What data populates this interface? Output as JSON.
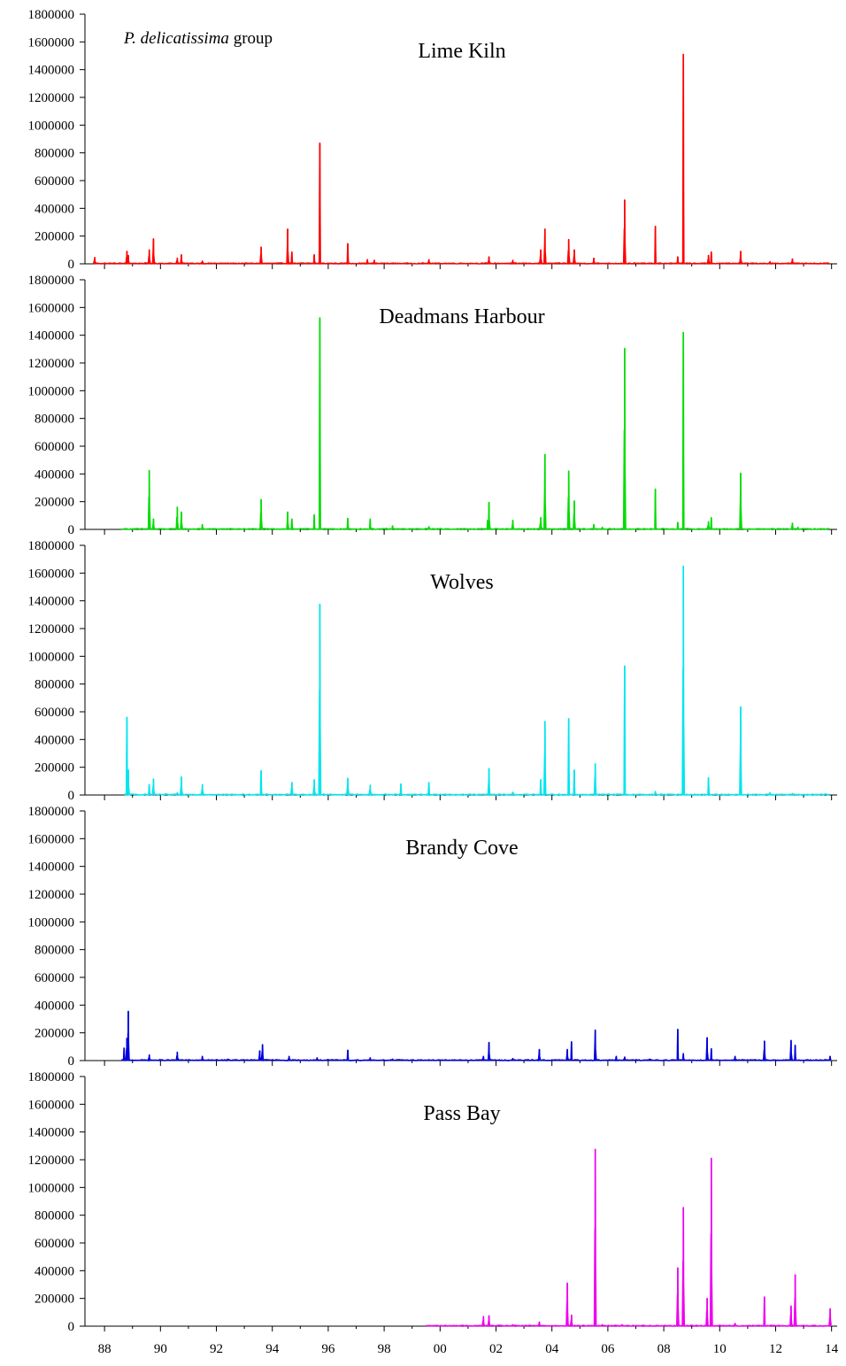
{
  "figure": {
    "group_label_species": "P. delicatissima",
    "group_label_suffix": " group"
  },
  "chart_data": {
    "type": "line",
    "xlabel": "",
    "ylabel": "",
    "ylim": [
      0,
      1800000
    ],
    "y_ticks": [
      0,
      200000,
      400000,
      600000,
      800000,
      1000000,
      1200000,
      1400000,
      1600000,
      1800000
    ],
    "y_tick_labels": [
      "0",
      "200000",
      "400000",
      "600000",
      "800000",
      "1000000",
      "1200000",
      "1400000",
      "1600000",
      "1800000"
    ],
    "xlim": [
      1987.3,
      2014.2
    ],
    "x_ticks": [
      1988,
      1990,
      1992,
      1994,
      1996,
      1998,
      2000,
      2002,
      2004,
      2006,
      2008,
      2010,
      2012,
      2014
    ],
    "x_tick_labels": [
      "88",
      "90",
      "92",
      "94",
      "96",
      "98",
      "00",
      "02",
      "04",
      "06",
      "08",
      "10",
      "12",
      "14"
    ],
    "grid": false,
    "panels": [
      {
        "title": "Lime Kiln",
        "color": "#ff0000",
        "start": 1987.6,
        "peaks": [
          [
            1987.65,
            45000
          ],
          [
            1988.8,
            90000
          ],
          [
            1988.85,
            60000
          ],
          [
            1989.6,
            100000
          ],
          [
            1989.75,
            180000
          ],
          [
            1990.6,
            40000
          ],
          [
            1990.75,
            65000
          ],
          [
            1991.5,
            20000
          ],
          [
            1993.6,
            120000
          ],
          [
            1994.55,
            250000
          ],
          [
            1994.7,
            85000
          ],
          [
            1995.5,
            65000
          ],
          [
            1995.7,
            870000
          ],
          [
            1996.7,
            145000
          ],
          [
            1997.4,
            30000
          ],
          [
            1997.65,
            25000
          ],
          [
            1999.6,
            30000
          ],
          [
            2001.75,
            50000
          ],
          [
            2002.6,
            25000
          ],
          [
            2003.6,
            100000
          ],
          [
            2003.75,
            250000
          ],
          [
            2004.6,
            175000
          ],
          [
            2004.8,
            100000
          ],
          [
            2005.5,
            40000
          ],
          [
            2006.6,
            460000
          ],
          [
            2007.7,
            270000
          ],
          [
            2008.5,
            50000
          ],
          [
            2008.7,
            1510000
          ],
          [
            2009.6,
            60000
          ],
          [
            2009.7,
            85000
          ],
          [
            2010.75,
            90000
          ],
          [
            2011.8,
            15000
          ],
          [
            2012.6,
            35000
          ]
        ]
      },
      {
        "title": "Deadmans Harbour",
        "color": "#00dd00",
        "start": 1988.6,
        "peaks": [
          [
            1989.6,
            425000
          ],
          [
            1989.75,
            75000
          ],
          [
            1990.6,
            160000
          ],
          [
            1990.75,
            125000
          ],
          [
            1991.5,
            35000
          ],
          [
            1993.6,
            215000
          ],
          [
            1994.55,
            125000
          ],
          [
            1994.7,
            75000
          ],
          [
            1995.5,
            105000
          ],
          [
            1995.7,
            1525000
          ],
          [
            1996.7,
            80000
          ],
          [
            1997.5,
            75000
          ],
          [
            1998.3,
            25000
          ],
          [
            1999.6,
            20000
          ],
          [
            2001.7,
            65000
          ],
          [
            2001.75,
            195000
          ],
          [
            2002.6,
            65000
          ],
          [
            2003.6,
            85000
          ],
          [
            2003.75,
            540000
          ],
          [
            2004.6,
            420000
          ],
          [
            2004.8,
            205000
          ],
          [
            2005.5,
            35000
          ],
          [
            2005.8,
            15000
          ],
          [
            2006.6,
            1305000
          ],
          [
            2007.7,
            290000
          ],
          [
            2008.5,
            50000
          ],
          [
            2008.7,
            1420000
          ],
          [
            2009.6,
            55000
          ],
          [
            2009.7,
            85000
          ],
          [
            2010.75,
            405000
          ],
          [
            2012.6,
            45000
          ],
          [
            2012.8,
            15000
          ]
        ]
      },
      {
        "title": "Wolves",
        "color": "#00e5ee",
        "start": 1988.7,
        "peaks": [
          [
            1988.8,
            560000
          ],
          [
            1988.85,
            180000
          ],
          [
            1989.6,
            75000
          ],
          [
            1989.75,
            115000
          ],
          [
            1990.6,
            15000
          ],
          [
            1990.75,
            130000
          ],
          [
            1991.5,
            75000
          ],
          [
            1993.6,
            175000
          ],
          [
            1994.7,
            90000
          ],
          [
            1995.5,
            110000
          ],
          [
            1995.7,
            1375000
          ],
          [
            1996.7,
            120000
          ],
          [
            1997.5,
            70000
          ],
          [
            1998.6,
            80000
          ],
          [
            1999.6,
            90000
          ],
          [
            2001.75,
            190000
          ],
          [
            2002.6,
            20000
          ],
          [
            2003.6,
            110000
          ],
          [
            2003.75,
            530000
          ],
          [
            2004.6,
            550000
          ],
          [
            2004.8,
            180000
          ],
          [
            2005.55,
            225000
          ],
          [
            2006.6,
            930000
          ],
          [
            2007.7,
            25000
          ],
          [
            2008.7,
            1650000
          ],
          [
            2009.6,
            125000
          ],
          [
            2010.75,
            635000
          ],
          [
            2011.8,
            15000
          ],
          [
            2012.6,
            10000
          ]
        ]
      },
      {
        "title": "Brandy Cove",
        "color": "#0000dd",
        "start": 1988.6,
        "peaks": [
          [
            1988.7,
            90000
          ],
          [
            1988.8,
            160000
          ],
          [
            1988.85,
            355000
          ],
          [
            1989.6,
            40000
          ],
          [
            1990.6,
            60000
          ],
          [
            1991.5,
            30000
          ],
          [
            1992.4,
            10000
          ],
          [
            1993.55,
            70000
          ],
          [
            1993.65,
            115000
          ],
          [
            1994.6,
            30000
          ],
          [
            1995.6,
            20000
          ],
          [
            1996.7,
            75000
          ],
          [
            1997.5,
            20000
          ],
          [
            1998.3,
            10000
          ],
          [
            2001.55,
            30000
          ],
          [
            2001.75,
            130000
          ],
          [
            2002.6,
            15000
          ],
          [
            2003.55,
            80000
          ],
          [
            2004.55,
            80000
          ],
          [
            2004.7,
            135000
          ],
          [
            2005.55,
            220000
          ],
          [
            2006.3,
            30000
          ],
          [
            2006.6,
            25000
          ],
          [
            2007.5,
            10000
          ],
          [
            2008.5,
            225000
          ],
          [
            2008.7,
            50000
          ],
          [
            2009.55,
            165000
          ],
          [
            2009.7,
            85000
          ],
          [
            2010.55,
            30000
          ],
          [
            2011.6,
            140000
          ],
          [
            2012.55,
            145000
          ],
          [
            2012.7,
            110000
          ],
          [
            2013.95,
            30000
          ]
        ]
      },
      {
        "title": "Pass Bay",
        "color": "#ee00ee",
        "start": 1999.5,
        "peaks": [
          [
            2001.55,
            70000
          ],
          [
            2001.75,
            75000
          ],
          [
            2002.6,
            10000
          ],
          [
            2003.55,
            30000
          ],
          [
            2004.55,
            310000
          ],
          [
            2004.7,
            80000
          ],
          [
            2005.55,
            1275000
          ],
          [
            2005.8,
            10000
          ],
          [
            2006.5,
            10000
          ],
          [
            2008.5,
            420000
          ],
          [
            2008.7,
            855000
          ],
          [
            2009.55,
            200000
          ],
          [
            2009.7,
            1210000
          ],
          [
            2010.55,
            20000
          ],
          [
            2011.6,
            210000
          ],
          [
            2012.55,
            145000
          ],
          [
            2012.7,
            370000
          ],
          [
            2013.95,
            125000
          ]
        ]
      }
    ]
  }
}
